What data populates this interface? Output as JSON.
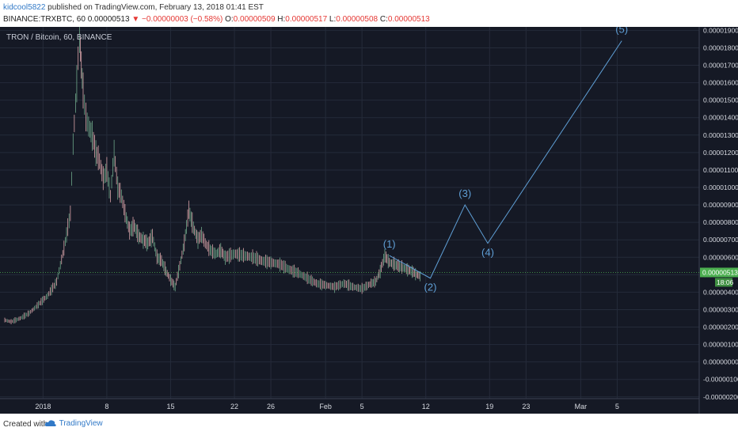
{
  "header": {
    "author": "kidcool5822",
    "published": "published on TradingView.com, February 13, 2018 01:41 EST",
    "symbol_line": "BINANCE:TRXBTC, 60",
    "last": "0.00000513",
    "change_arrow": "▼",
    "change": "−0.00000003 (−0.58%)",
    "ohlc": [
      {
        "label": "O:",
        "value": "0.00000509"
      },
      {
        "label": "H:",
        "value": "0.00000517"
      },
      {
        "label": "L:",
        "value": "0.00000508"
      },
      {
        "label": "C:",
        "value": "0.00000513"
      }
    ]
  },
  "symbol_legend": "TRON / Bitcoin, 60, BINANCE",
  "footer": {
    "created_with": "Created with",
    "brand": "TradingView"
  },
  "colors": {
    "background": "#151925",
    "grid": "#252b3a",
    "up": "#6fa88a",
    "down": "#d9a3a8",
    "wave": "#5f9fd6",
    "price_tag": "#4caf50",
    "axis_text": "#d7dae1"
  },
  "chart_data": {
    "type": "line",
    "ylim": [
      -2.1e-06,
      1.92e-05
    ],
    "yticks": [
      "0.00001900",
      "0.00001800",
      "0.00001700",
      "0.00001600",
      "0.00001500",
      "0.00001400",
      "0.00001300",
      "0.00001200",
      "0.00001100",
      "0.00001000",
      "0.00000900",
      "0.00000800",
      "0.00000700",
      "0.00000600",
      "0.00000500",
      "0.00000400",
      "0.00000300",
      "0.00000200",
      "0.00000100",
      "0.00000000",
      "-0.00000100",
      "-0.00000200"
    ],
    "ytick_values": [
      1.9e-05,
      1.8e-05,
      1.7e-05,
      1.6e-05,
      1.5e-05,
      1.4e-05,
      1.3e-05,
      1.2e-05,
      1.1e-05,
      1e-05,
      9e-06,
      8e-06,
      7e-06,
      6e-06,
      5e-06,
      4e-06,
      3e-06,
      2e-06,
      1e-06,
      0,
      -1e-06,
      -2e-06
    ],
    "xticks": [
      {
        "label": "2018",
        "day": 0
      },
      {
        "label": "8",
        "day": 7
      },
      {
        "label": "15",
        "day": 14
      },
      {
        "label": "22",
        "day": 21
      },
      {
        "label": "26",
        "day": 25
      },
      {
        "label": "Feb",
        "day": 31
      },
      {
        "label": "5",
        "day": 35
      },
      {
        "label": "12",
        "day": 42
      },
      {
        "label": "19",
        "day": 49
      },
      {
        "label": "23",
        "day": 53
      },
      {
        "label": "Mar",
        "day": 59
      },
      {
        "label": "5",
        "day": 63
      }
    ],
    "price_series": {
      "days": [
        -4.2,
        -3.5,
        -2.5,
        -1.5,
        -0.5,
        0.5,
        1.5,
        2.3,
        3.0,
        3.3,
        3.7,
        4.0,
        4.2,
        4.4,
        4.7,
        5.0,
        5.4,
        5.8,
        6.2,
        6.6,
        7.0,
        7.4,
        7.8,
        8.2,
        8.6,
        9.0,
        9.5,
        10.0,
        10.5,
        11.0,
        11.5,
        12.0,
        12.5,
        13.0,
        13.5,
        14.0,
        14.5,
        15.0,
        15.5,
        16.0,
        16.5,
        17.0,
        17.4,
        17.8,
        18.2,
        18.6,
        19.0,
        19.5,
        20.0,
        21.0,
        22.0,
        23.0,
        24.0,
        25.0,
        26.0,
        27.0,
        28.0,
        29.0,
        30.0,
        31.0,
        32.0,
        33.0,
        34.0,
        35.0,
        36.0,
        36.5,
        37.0,
        37.5,
        38.0,
        38.5,
        39.0,
        39.5,
        40.0,
        40.5,
        41.0,
        41.5
      ],
      "close": [
        2.4e-06,
        2.3e-06,
        2.5e-06,
        2.8e-06,
        3.3e-06,
        3.8e-06,
        4.6e-06,
        6.5e-06,
        8.5e-06,
        1.25e-05,
        1.6e-05,
        1.88e-05,
        1.7e-05,
        1.55e-05,
        1.4e-05,
        1.35e-05,
        1.3e-05,
        1.2e-05,
        1.15e-05,
        1.05e-05,
        1.1e-05,
        9.5e-06,
        1.2e-05,
        1e-05,
        9.5e-06,
        8.5e-06,
        7.5e-06,
        7.8e-06,
        7.2e-06,
        7e-06,
        6.8e-06,
        7.2e-06,
        6e-06,
        5.8e-06,
        5.2e-06,
        4.7e-06,
        4.3e-06,
        5.5e-06,
        6.8e-06,
        8.7e-06,
        7.7e-06,
        7e-06,
        7.3e-06,
        6.8e-06,
        6.5e-06,
        6.3e-06,
        6.2e-06,
        6.4e-06,
        6e-06,
        6.2e-06,
        6.1e-06,
        6e-06,
        5.8e-06,
        5.7e-06,
        5.6e-06,
        5.3e-06,
        5.1e-06,
        4.8e-06,
        4.5e-06,
        4.4e-06,
        4.3e-06,
        4.5e-06,
        4.3e-06,
        4.2e-06,
        4.5e-06,
        4.6e-06,
        5.2e-06,
        6.1e-06,
        5.7e-06,
        5.6e-06,
        5.5e-06,
        5.4e-06,
        5.3e-06,
        5.2e-06,
        5e-06,
        4.9e-06
      ]
    },
    "last_price": 5.13e-06,
    "last_price_label": "0.00000513",
    "countdown": "18:06",
    "wave_labels": [
      {
        "label": "(1)",
        "day": 38.0,
        "value": 6.1e-06
      },
      {
        "label": "(2)",
        "day": 42.5,
        "value": 4.8e-06
      },
      {
        "label": "(3)",
        "day": 46.3,
        "value": 9e-06
      },
      {
        "label": "(4)",
        "day": 48.8,
        "value": 6.8e-06
      },
      {
        "label": "(5)",
        "day": 63.5,
        "value": 1.84e-05
      }
    ]
  }
}
